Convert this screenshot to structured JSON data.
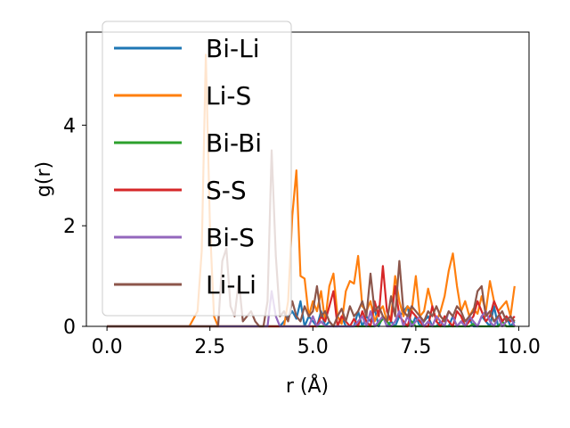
{
  "chart_data": {
    "type": "line",
    "xlabel": "r (Å)",
    "ylabel": "g(r)",
    "xlim": [
      -0.5,
      10.25
    ],
    "ylim": [
      0,
      5.85
    ],
    "xticks": [
      "0.0",
      "2.5",
      "5.0",
      "7.5",
      "10.0"
    ],
    "yticks": [
      "0",
      "2",
      "4"
    ],
    "legend_position": "top-left",
    "grid": false,
    "x": [
      0.0,
      0.5,
      1.0,
      1.5,
      2.0,
      2.2,
      2.3,
      2.4,
      2.5,
      2.6,
      2.7,
      2.8,
      2.9,
      3.0,
      3.1,
      3.2,
      3.3,
      3.4,
      3.5,
      3.6,
      3.7,
      3.8,
      3.9,
      4.0,
      4.1,
      4.2,
      4.3,
      4.4,
      4.5,
      4.6,
      4.7,
      4.8,
      4.9,
      5.0,
      5.1,
      5.2,
      5.3,
      5.4,
      5.5,
      5.6,
      5.7,
      5.8,
      5.9,
      6.0,
      6.1,
      6.2,
      6.3,
      6.4,
      6.5,
      6.6,
      6.7,
      6.8,
      6.9,
      7.0,
      7.1,
      7.2,
      7.3,
      7.4,
      7.5,
      7.6,
      7.7,
      7.8,
      7.9,
      8.0,
      8.1,
      8.2,
      8.3,
      8.4,
      8.5,
      8.6,
      8.7,
      8.8,
      8.9,
      9.0,
      9.1,
      9.2,
      9.3,
      9.4,
      9.5,
      9.6,
      9.7,
      9.8,
      9.9
    ],
    "series": [
      {
        "name": "Bi-Li",
        "color": "#1f77b4",
        "values": [
          0,
          0,
          0,
          0,
          0,
          0,
          0,
          0,
          0,
          0,
          0,
          0,
          0,
          0,
          0,
          0,
          0,
          0,
          0,
          0,
          0,
          0,
          0,
          0,
          0,
          0,
          0.1,
          0.2,
          0.3,
          0.15,
          0.5,
          0,
          0.2,
          0.1,
          0,
          0.3,
          0,
          0.1,
          0,
          0,
          0.2,
          0,
          0,
          0,
          0.3,
          0,
          0.2,
          0.1,
          0.35,
          0,
          0.2,
          0,
          0.1,
          0,
          0.2,
          0.3,
          0.4,
          0,
          0.2,
          0,
          0.1,
          0.2,
          0,
          0,
          0.1,
          0,
          0,
          0.2,
          0,
          0.1,
          0,
          0.15,
          0,
          0,
          0.2,
          0.1,
          0,
          0.4,
          0,
          0.1,
          0.2,
          0,
          0.1
        ]
      },
      {
        "name": "Li-S",
        "color": "#ff7f0e",
        "values": [
          0,
          0,
          0,
          0,
          0,
          0.3,
          1.5,
          5.4,
          2.0,
          0.2,
          0,
          0,
          0,
          0,
          0,
          0,
          0,
          0,
          0,
          0,
          0,
          0,
          0,
          0,
          0,
          0,
          0,
          0.5,
          2.2,
          3.1,
          1.0,
          0.95,
          0.2,
          0.5,
          0.3,
          0.7,
          0.1,
          0.8,
          1.05,
          0.2,
          0.05,
          0.7,
          0.9,
          0.85,
          1.4,
          0.4,
          0.3,
          0.5,
          0.1,
          0.3,
          0.4,
          0.1,
          0.2,
          1.0,
          0.5,
          0.2,
          0.4,
          0.3,
          1.0,
          0.2,
          0.3,
          0.75,
          0.4,
          0.1,
          0.3,
          0.6,
          1.1,
          1.45,
          0.8,
          0.3,
          0.5,
          0.2,
          0.35,
          0.25,
          0.6,
          0.3,
          0.9,
          0.5,
          0.3,
          0.4,
          0.5,
          0.2,
          0.8
        ]
      },
      {
        "name": "Bi-Bi",
        "color": "#2ca02c",
        "values": [
          0,
          0,
          0,
          0,
          0,
          0,
          0,
          0,
          0,
          0,
          0,
          0,
          0,
          0,
          0,
          0,
          0,
          0,
          0,
          0,
          0,
          0,
          0,
          0,
          0,
          0,
          0,
          0,
          0,
          0,
          0,
          0,
          0,
          0,
          0,
          0,
          0,
          0,
          0,
          0,
          0,
          0,
          0,
          0,
          0,
          0,
          0,
          0,
          0,
          0.05,
          0.15,
          0.1,
          0,
          0,
          0,
          0,
          0,
          0.1,
          0,
          0,
          0,
          0,
          0,
          0,
          0,
          0,
          0,
          0,
          0,
          0,
          0,
          0,
          0.05,
          0,
          0,
          0,
          0,
          0,
          0,
          0.1,
          0,
          0,
          0
        ]
      },
      {
        "name": "S-S",
        "color": "#d62728",
        "values": [
          0,
          0,
          0,
          0,
          0,
          0,
          0,
          0,
          0,
          0,
          0,
          0,
          0,
          0,
          0,
          0,
          0,
          0,
          0,
          0,
          0,
          0,
          0,
          0,
          0,
          0,
          0,
          0,
          0,
          0,
          0,
          0,
          0,
          0,
          0,
          0.2,
          0.1,
          0.4,
          0.7,
          0,
          0.2,
          0.1,
          0,
          0.15,
          0,
          0.3,
          0.1,
          0,
          0.5,
          0.2,
          1.2,
          0.3,
          0.1,
          0.8,
          0.2,
          0.1,
          0,
          0.3,
          0.2,
          0.1,
          0,
          0,
          0.4,
          0.1,
          0,
          0.2,
          0.1,
          0,
          0.3,
          0.2,
          0,
          0.1,
          0.2,
          0.5,
          0.3,
          0.1,
          0.2,
          0.5,
          0.3,
          0.1,
          0.2,
          0.1,
          0.2
        ]
      },
      {
        "name": "Bi-S",
        "color": "#9467bd",
        "values": [
          0,
          0,
          0,
          0,
          0,
          0,
          0,
          0,
          0,
          0,
          0,
          0,
          0,
          0,
          0,
          0,
          0,
          0,
          0,
          0,
          0,
          0,
          0,
          0.7,
          0.2,
          0,
          0,
          0,
          0,
          0,
          0,
          0,
          0,
          0.2,
          0,
          0.1,
          0,
          0,
          0,
          0,
          0,
          0,
          0,
          0,
          0.1,
          0.2,
          0,
          0.3,
          0,
          0.1,
          0.2,
          0,
          0,
          0.1,
          0.3,
          0,
          0.2,
          0,
          0.1,
          0.2,
          0,
          0.1,
          0,
          0.2,
          0.1,
          0,
          0.3,
          0.2,
          0,
          0.1,
          0,
          0.2,
          0.1,
          0,
          0.2,
          0.3,
          0.1,
          0,
          0.2,
          0,
          0.1,
          0.2,
          0
        ]
      },
      {
        "name": "Li-Li",
        "color": "#8c564b",
        "values": [
          0,
          0,
          0,
          0,
          0,
          0,
          0,
          0,
          0,
          0,
          0,
          1.3,
          1.55,
          0.4,
          0.2,
          0.9,
          0.1,
          0.2,
          0.3,
          0.1,
          0,
          0,
          0.5,
          3.5,
          1.4,
          0.2,
          0.3,
          0.1,
          0.5,
          0.2,
          0.1,
          0.4,
          0.2,
          0.3,
          0.8,
          0.2,
          0.3,
          0.1,
          0,
          0.2,
          0.35,
          0.1,
          0.4,
          0.2,
          0.3,
          0.5,
          0.2,
          1.05,
          0.3,
          0.4,
          0.2,
          0.1,
          0.6,
          0.2,
          1.3,
          0.3,
          0.2,
          0.4,
          0.3,
          0.2,
          0.1,
          0.3,
          0.2,
          0.4,
          0.2,
          0.1,
          0.3,
          0.2,
          0.4,
          0.3,
          0.1,
          0.2,
          0.3,
          0.7,
          0.8,
          0.2,
          0.3,
          0.1,
          0.2,
          0.3,
          0.1,
          0.2,
          0.1
        ]
      }
    ]
  }
}
